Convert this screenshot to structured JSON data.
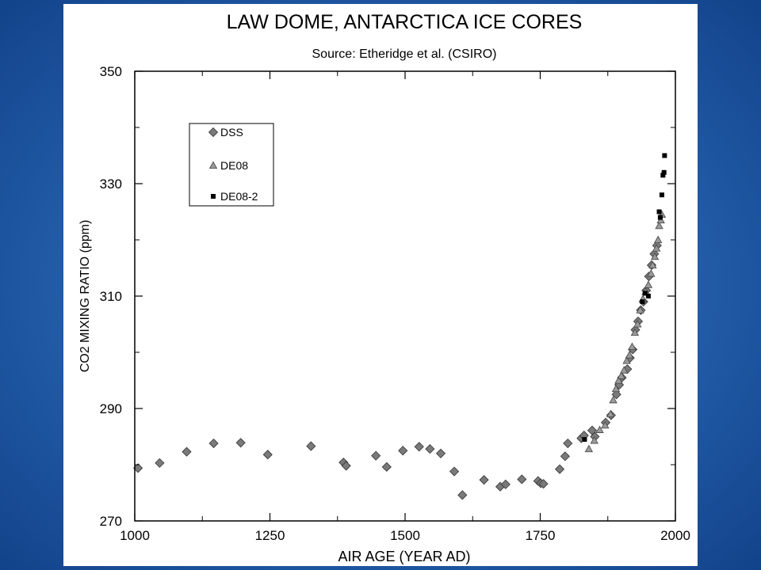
{
  "colors": {
    "background": "#1f57a6",
    "panel": "#ffffff",
    "dss_fill": "#7a7a7a",
    "de08_fill": "#9a9a9a",
    "de082_fill": "#000000"
  },
  "chart_data": {
    "type": "scatter",
    "title": "LAW DOME, ANTARCTICA ICE CORES",
    "subtitle": "Source:  Etheridge et al. (CSIRO)",
    "xlabel": "AIR AGE  (YEAR AD)",
    "ylabel": "CO2 MIXING RATIO  (ppm)",
    "xlim": [
      1000,
      2000
    ],
    "ylim": [
      270,
      350
    ],
    "x_ticks": [
      1000,
      1250,
      1500,
      1750,
      2000
    ],
    "x_tick_labels": [
      "1000",
      "1250",
      "1500",
      "1750",
      "2000"
    ],
    "y_ticks": [
      270,
      290,
      310,
      330,
      350
    ],
    "y_tick_labels": [
      "270",
      "290",
      "310",
      "330",
      "350"
    ],
    "grid": false,
    "legend_position": "top-left",
    "series": [
      {
        "name": "DSS",
        "marker": "diamond",
        "points": [
          [
            1006,
            279.4
          ],
          [
            1046,
            280.3
          ],
          [
            1096,
            282.3
          ],
          [
            1146,
            283.8
          ],
          [
            1196,
            283.9
          ],
          [
            1246,
            281.8
          ],
          [
            1326,
            283.3
          ],
          [
            1386,
            280.4
          ],
          [
            1391,
            279.8
          ],
          [
            1446,
            281.6
          ],
          [
            1466,
            279.6
          ],
          [
            1496,
            282.5
          ],
          [
            1526,
            283.2
          ],
          [
            1546,
            282.8
          ],
          [
            1566,
            282.0
          ],
          [
            1591,
            278.8
          ],
          [
            1606,
            274.6
          ],
          [
            1646,
            277.3
          ],
          [
            1676,
            276.1
          ],
          [
            1686,
            276.5
          ],
          [
            1716,
            277.4
          ],
          [
            1746,
            277.1
          ],
          [
            1751,
            276.7
          ],
          [
            1756,
            276.6
          ],
          [
            1786,
            279.2
          ],
          [
            1796,
            281.5
          ],
          [
            1801,
            283.8
          ],
          [
            1826,
            284.7
          ],
          [
            1831,
            285.2
          ],
          [
            1846,
            286.1
          ],
          [
            1851,
            285.0
          ],
          [
            1871,
            287.5
          ],
          [
            1881,
            288.8
          ],
          [
            1891,
            292.5
          ],
          [
            1896,
            294.2
          ],
          [
            1901,
            295.5
          ],
          [
            1911,
            297.0
          ],
          [
            1916,
            299.0
          ],
          [
            1921,
            300.5
          ],
          [
            1926,
            304.0
          ],
          [
            1931,
            305.5
          ],
          [
            1936,
            307.5
          ],
          [
            1941,
            309.0
          ],
          [
            1946,
            311.0
          ],
          [
            1951,
            313.5
          ],
          [
            1956,
            315.5
          ],
          [
            1961,
            317.5
          ],
          [
            1966,
            319.0
          ]
        ]
      },
      {
        "name": "DE08",
        "marker": "triangle",
        "points": [
          [
            1840,
            282.8
          ],
          [
            1850,
            284.3
          ],
          [
            1860,
            286.2
          ],
          [
            1870,
            287.0
          ],
          [
            1880,
            289.0
          ],
          [
            1885,
            291.5
          ],
          [
            1890,
            293.5
          ],
          [
            1895,
            295.0
          ],
          [
            1900,
            295.8
          ],
          [
            1905,
            296.8
          ],
          [
            1910,
            298.5
          ],
          [
            1915,
            299.5
          ],
          [
            1920,
            301.0
          ],
          [
            1925,
            303.5
          ],
          [
            1930,
            305.0
          ],
          [
            1935,
            307.5
          ],
          [
            1940,
            309.5
          ],
          [
            1945,
            310.8
          ],
          [
            1950,
            312.0
          ],
          [
            1955,
            314.0
          ],
          [
            1958,
            315.5
          ],
          [
            1962,
            317.0
          ],
          [
            1965,
            318.5
          ],
          [
            1968,
            320.0
          ],
          [
            1970,
            322.5
          ],
          [
            1973,
            323.5
          ],
          [
            1975,
            324.5
          ]
        ]
      },
      {
        "name": "DE08-2",
        "marker": "square",
        "points": [
          [
            1832,
            284.5
          ],
          [
            1939,
            309.0
          ],
          [
            1944,
            310.5
          ],
          [
            1950,
            310.0
          ],
          [
            1970,
            325.0
          ],
          [
            1972,
            324.0
          ],
          [
            1975,
            328.0
          ],
          [
            1977,
            331.5
          ],
          [
            1979,
            332.0
          ],
          [
            1980,
            335.0
          ]
        ]
      }
    ]
  }
}
